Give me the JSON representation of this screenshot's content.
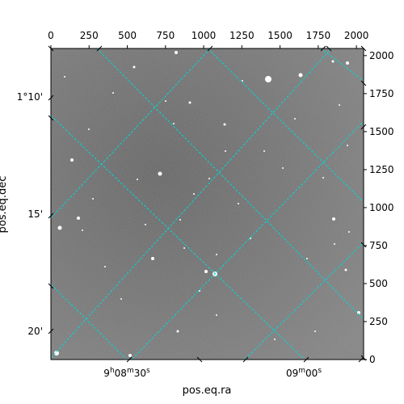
{
  "pixel_axis": {
    "x_ticks": [
      "0",
      "250",
      "500",
      "750",
      "1000",
      "1250",
      "1500",
      "1750",
      "2000"
    ],
    "y_ticks": [
      "0",
      "250",
      "500",
      "750",
      "1000",
      "1250",
      "1500",
      "1750",
      "2000"
    ],
    "x_range": [
      0,
      2047
    ],
    "y_range": [
      0,
      2047
    ]
  },
  "world_axis": {
    "dec_ticks": [
      "1°10'",
      "15'",
      "20'"
    ],
    "ra_ticks": [
      {
        "main": "9",
        "h": "h",
        "mid": "08",
        "m": "m",
        "end": "30",
        "s": "s"
      },
      {
        "main": "09",
        "m": "m",
        "mid": "00",
        "s": "s"
      }
    ],
    "xlabel": "pos.eq.ra",
    "ylabel": "pos.eq.dec"
  },
  "style": {
    "grid_color": "#00d8d8",
    "frame_color": "#000000",
    "background_color": "#7a7a7a"
  }
}
